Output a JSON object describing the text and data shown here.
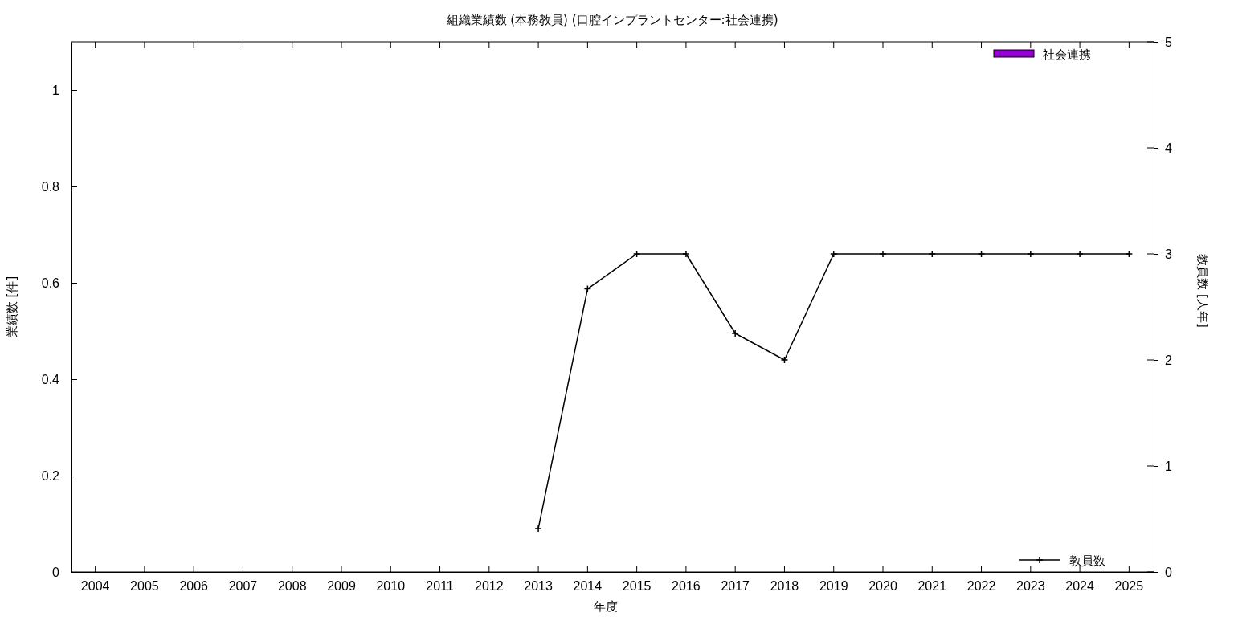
{
  "chart_data": {
    "type": "bar",
    "title": "組織業績数 (本務教員) (口腔インプラントセンター:社会連携)",
    "xlabel": "年度",
    "ylabel": "業績数 [件]",
    "y2label": "教員数 [人年]",
    "categories": [
      "2004",
      "2005",
      "2006",
      "2007",
      "2008",
      "2009",
      "2010",
      "2011",
      "2012",
      "2013",
      "2014",
      "2015",
      "2016",
      "2017",
      "2018",
      "2019",
      "2020",
      "2021",
      "2022",
      "2023",
      "2024",
      "2025"
    ],
    "series": [
      {
        "name": "社会連携",
        "color": "#9400d3",
        "values": [
          0,
          0,
          0,
          0,
          0,
          0,
          0,
          0,
          0,
          0,
          0,
          0,
          0,
          0,
          0,
          0,
          0,
          0,
          0,
          0,
          0,
          0
        ]
      },
      {
        "name": "教員数",
        "type": "line",
        "axis": "y2",
        "color": "#000000",
        "marker": "cross",
        "line_style": "solid",
        "values": [
          null,
          null,
          null,
          null,
          null,
          null,
          null,
          null,
          null,
          0.41,
          2.67,
          3,
          3,
          2.25,
          2,
          3,
          3,
          3,
          3,
          3,
          3,
          3
        ]
      }
    ],
    "ylim": [
      0,
      1.1
    ],
    "yticks": [
      0,
      0.2,
      0.4,
      0.6,
      0.8,
      1
    ],
    "y2lim": [
      0,
      5
    ],
    "y2ticks": [
      0,
      1,
      2,
      3,
      4,
      5
    ],
    "grid": false,
    "legend": "right"
  }
}
